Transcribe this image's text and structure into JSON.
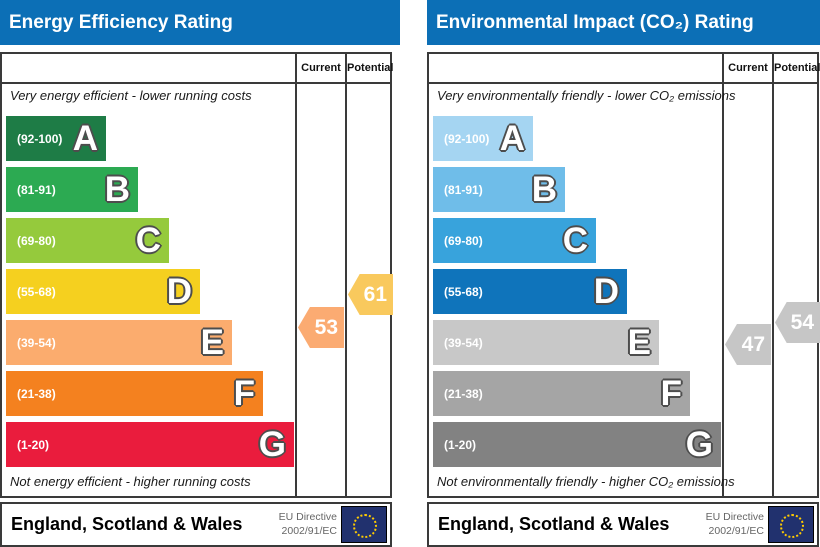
{
  "colors": {
    "header_blue": "#0c6fb6",
    "energy_bands": [
      "#1e7c46",
      "#2caa52",
      "#95ca3c",
      "#f5d01f",
      "#fbac6e",
      "#f4811f",
      "#ea1c3d"
    ],
    "co2_bands": [
      "#a5d5f2",
      "#6fbde9",
      "#38a3dc",
      "#0f74bb",
      "#c8c8c8",
      "#a5a5a5",
      "#828282"
    ],
    "energy_current_arrow": "#fbab72",
    "energy_potential_arrow": "#f9c95d",
    "co2_arrows": "#c6c6c6",
    "eu_flag_blue": "#21316e",
    "eu_flag_stars": "#ffcc00"
  },
  "chart_data": [
    {
      "type": "bar",
      "title": "Energy Efficiency Rating",
      "categories": [
        "A (92-100)",
        "B (81-91)",
        "C (69-80)",
        "D (55-68)",
        "E (39-54)",
        "F (21-38)",
        "G (1-20)"
      ],
      "series": [
        {
          "name": "Current",
          "values": [
            53
          ]
        },
        {
          "name": "Potential",
          "values": [
            61
          ]
        }
      ],
      "current": 53,
      "current_band": "E",
      "potential": 61,
      "potential_band": "D",
      "top_caption": "Very energy efficient - lower running costs",
      "bottom_caption": "Not energy efficient - higher running costs",
      "footer": "England, Scotland & Wales",
      "annotation": "EU Directive 2002/91/EC",
      "axis_range": [
        1,
        100
      ]
    },
    {
      "type": "bar",
      "title": "Environmental Impact (CO₂) Rating",
      "categories": [
        "A (92-100)",
        "B (81-91)",
        "C (69-80)",
        "D (55-68)",
        "E (39-54)",
        "F (21-38)",
        "G (1-20)"
      ],
      "series": [
        {
          "name": "Current",
          "values": [
            47
          ]
        },
        {
          "name": "Potential",
          "values": [
            54
          ]
        }
      ],
      "current": 47,
      "current_band": "E",
      "potential": 54,
      "potential_band": "E",
      "top_caption": "Very environmentally friendly - lower CO₂ emissions",
      "bottom_caption": "Not environmentally friendly - higher CO₂ emissions",
      "footer": "England, Scotland & Wales",
      "annotation": "EU Directive 2002/91/EC",
      "axis_range": [
        1,
        100
      ]
    }
  ],
  "panels": [
    {
      "title": "Energy Efficiency Rating",
      "col_current": "Current",
      "col_potential": "Potential",
      "caption_top": "Very energy efficient - lower running costs",
      "caption_bottom": "Not energy efficient - higher running costs",
      "bands": [
        {
          "grade": "A",
          "range": "(92-100)",
          "color": "#1e7c46"
        },
        {
          "grade": "B",
          "range": "(81-91)",
          "color": "#2caa52"
        },
        {
          "grade": "C",
          "range": "(69-80)",
          "color": "#95ca3c"
        },
        {
          "grade": "D",
          "range": "(55-68)",
          "color": "#f5d01f"
        },
        {
          "grade": "E",
          "range": "(39-54)",
          "color": "#fbac6e"
        },
        {
          "grade": "F",
          "range": "(21-38)",
          "color": "#f4811f"
        },
        {
          "grade": "G",
          "range": "(1-20)",
          "color": "#ea1c3d"
        }
      ],
      "current_value": "53",
      "potential_value": "61",
      "footer_region": "England, Scotland & Wales",
      "eu_line1": "EU Directive",
      "eu_line2": "2002/91/EC"
    },
    {
      "title": "Environmental Impact (CO₂) Rating",
      "col_current": "Current",
      "col_potential": "Potential",
      "caption_top": "Very environmentally friendly - lower CO₂ emissions",
      "caption_bottom": "Not environmentally friendly - higher CO₂ emissions",
      "bands": [
        {
          "grade": "A",
          "range": "(92-100)",
          "color": "#a5d5f2"
        },
        {
          "grade": "B",
          "range": "(81-91)",
          "color": "#6fbde9"
        },
        {
          "grade": "C",
          "range": "(69-80)",
          "color": "#38a3dc"
        },
        {
          "grade": "D",
          "range": "(55-68)",
          "color": "#0f74bb"
        },
        {
          "grade": "E",
          "range": "(39-54)",
          "color": "#c8c8c8"
        },
        {
          "grade": "F",
          "range": "(21-38)",
          "color": "#a5a5a5"
        },
        {
          "grade": "G",
          "range": "(1-20)",
          "color": "#828282"
        }
      ],
      "current_value": "47",
      "potential_value": "54",
      "footer_region": "England, Scotland & Wales",
      "eu_line1": "EU Directive",
      "eu_line2": "2002/91/EC"
    }
  ]
}
